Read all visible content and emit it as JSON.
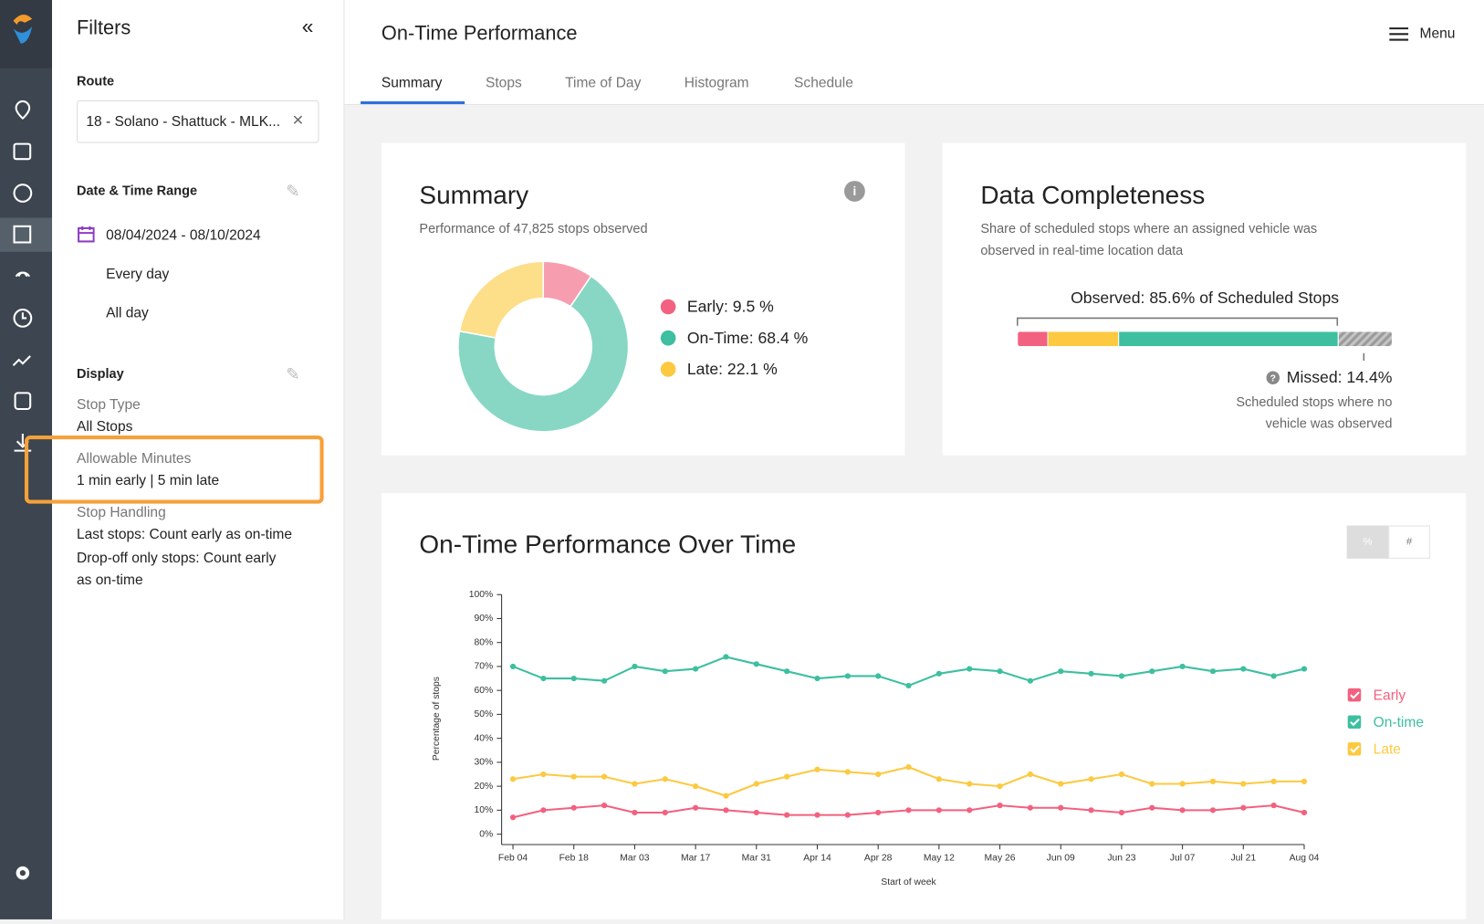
{
  "header": {
    "title": "On-Time Performance",
    "menu": "Menu",
    "tabs": [
      "Summary",
      "Stops",
      "Time of Day",
      "Histogram",
      "Schedule"
    ]
  },
  "filters": {
    "title": "Filters",
    "route_label": "Route",
    "route_value": "18 - Solano - Shattuck - MLK...",
    "date_label": "Date & Time Range",
    "date_range": "08/04/2024 - 08/10/2024",
    "days": "Every day",
    "hours": "All day",
    "display_label": "Display",
    "stop_type_label": "Stop Type",
    "stop_type": "All Stops",
    "allowable_label": "Allowable Minutes",
    "allowable": "1 min early | 5 min late",
    "handling_label": "Stop Handling",
    "handling_lines": [
      "Last stops: Count early as on-time",
      "Drop-off only stops: Count early as on-time"
    ]
  },
  "chart_data": [
    {
      "type": "donut",
      "title": "Summary",
      "subtitle": "Performance of 47,825 stops observed",
      "labels": [
        "Early: 9.5 %",
        "On-Time: 68.4 %",
        "Late: 22.1 %"
      ],
      "values": [
        9.5,
        68.4,
        22.1
      ],
      "colors": [
        "#f2617f",
        "#3dbfa0",
        "#fcc940"
      ]
    },
    {
      "type": "stacked-bar",
      "title": "Data Completeness",
      "subtitle": "Share of scheduled stops where an assigned vehicle was observed in real-time location data",
      "observed_label": "Observed: 85.6% of Scheduled Stops",
      "missed_label": "Missed: 14.4%",
      "missed_note": "Scheduled stops where no vehicle was observed",
      "values": [
        8.1,
        18.9,
        58.6,
        14.4
      ],
      "colors": [
        "#f2617f",
        "#fcc940",
        "#3dbfa0",
        "#9a9a9a"
      ]
    },
    {
      "type": "line",
      "title": "On-Time Performance Over Time",
      "x_label": "Start of week",
      "y_label": "Percentage of stops",
      "toggles": [
        "%",
        "#"
      ],
      "categories": [
        "Feb 04",
        null,
        "Feb 18",
        null,
        "Mar 03",
        null,
        "Mar 17",
        null,
        "Mar 31",
        null,
        "Apr 14",
        null,
        "Apr 28",
        null,
        "May 12",
        null,
        "May 26",
        null,
        "Jun 09",
        null,
        "Jun 23",
        null,
        "Jul 07",
        null,
        "Jul 21",
        null,
        "Aug 04"
      ],
      "series": [
        {
          "name": "Early",
          "color": "#f2617f",
          "values": [
            7,
            10,
            11,
            12,
            9,
            9,
            11,
            10,
            9,
            8,
            8,
            8,
            9,
            10,
            10,
            10,
            12,
            11,
            11,
            10,
            9,
            11,
            10,
            10,
            11,
            12,
            9
          ]
        },
        {
          "name": "On-time",
          "color": "#3dbfa0",
          "values": [
            70,
            65,
            65,
            64,
            70,
            68,
            69,
            74,
            71,
            68,
            65,
            66,
            66,
            62,
            67,
            69,
            68,
            64,
            68,
            67,
            66,
            68,
            70,
            68,
            69,
            66,
            69
          ]
        },
        {
          "name": "Late",
          "color": "#fcc940",
          "values": [
            23,
            25,
            24,
            24,
            21,
            23,
            20,
            16,
            21,
            24,
            27,
            26,
            25,
            28,
            23,
            21,
            20,
            25,
            21,
            23,
            25,
            21,
            21,
            22,
            21,
            22,
            22
          ]
        }
      ],
      "ylim": [
        0,
        100
      ],
      "yticks": [
        {
          "value": 0,
          "label": "0%"
        },
        {
          "value": 10,
          "label": "10%"
        },
        {
          "value": 20,
          "label": "20%"
        },
        {
          "value": 30,
          "label": "30%"
        },
        {
          "value": 40,
          "label": "40%"
        },
        {
          "value": 50,
          "label": "50%"
        },
        {
          "value": 60,
          "label": "60%"
        },
        {
          "value": 70,
          "label": "70%"
        },
        {
          "value": 80,
          "label": "80%"
        },
        {
          "value": 90,
          "label": "90%"
        },
        {
          "value": 100,
          "label": "100%"
        }
      ]
    }
  ]
}
